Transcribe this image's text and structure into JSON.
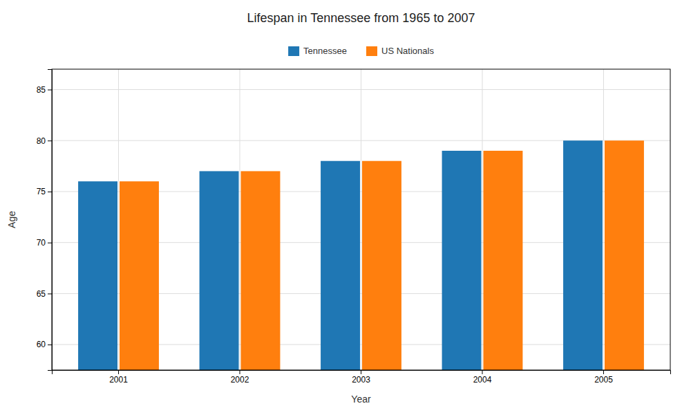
{
  "chart_data": {
    "type": "bar",
    "title": "Lifespan in Tennessee from 1965 to 2007",
    "xlabel": "Year",
    "ylabel": "Age",
    "categories": [
      "2001",
      "2002",
      "2003",
      "2004",
      "2005"
    ],
    "series": [
      {
        "name": "Tennessee",
        "values": [
          76,
          77,
          78,
          79,
          80
        ]
      },
      {
        "name": "US Nationals",
        "values": [
          76,
          77,
          78,
          79,
          80
        ]
      }
    ],
    "ylim": [
      57.5,
      87
    ],
    "yticks": [
      60,
      65,
      70,
      75,
      80,
      85
    ],
    "grid": true,
    "legend": "top"
  }
}
